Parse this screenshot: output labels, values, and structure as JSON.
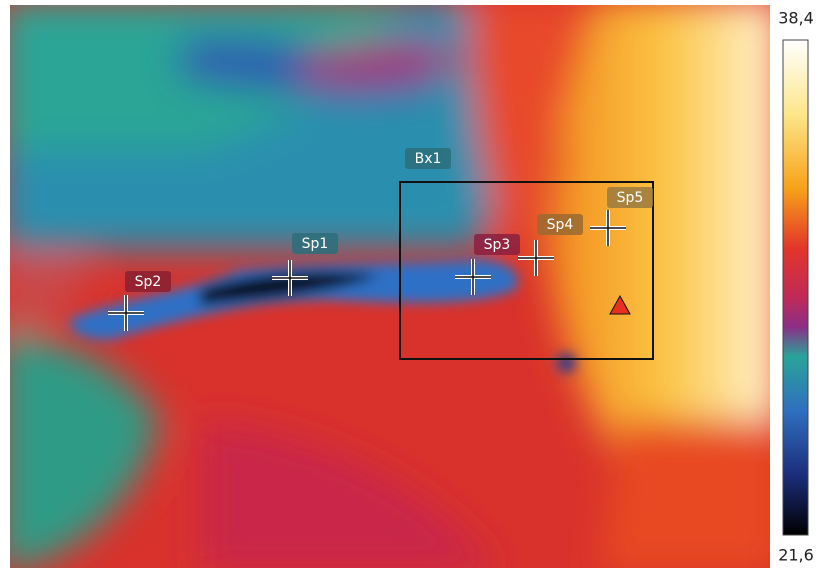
{
  "scale": {
    "max_label": "38,4",
    "min_label": "21,6"
  },
  "box": {
    "label": "Bx1"
  },
  "spots": [
    {
      "label": "Sp1"
    },
    {
      "label": "Sp2"
    },
    {
      "label": "Sp3"
    },
    {
      "label": "Sp4"
    },
    {
      "label": "Sp5"
    }
  ]
}
